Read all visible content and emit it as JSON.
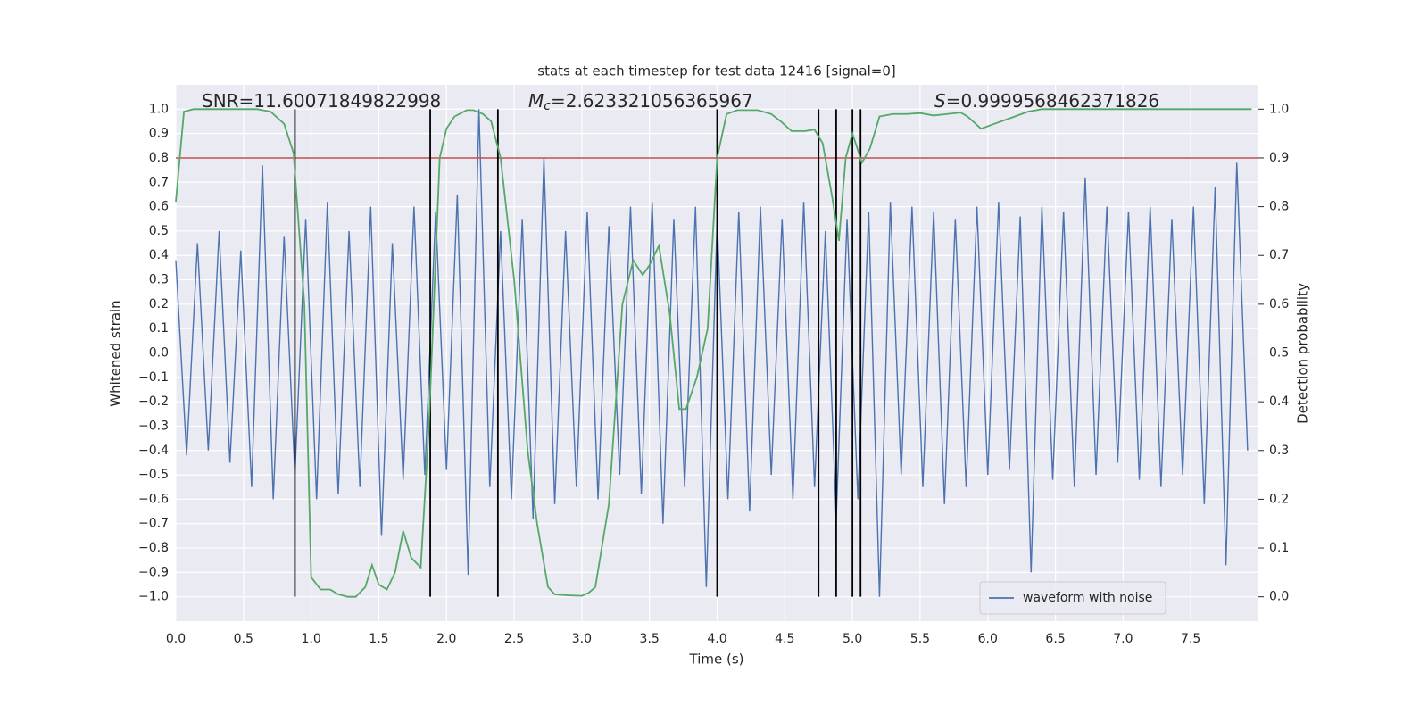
{
  "chart_data": {
    "type": "line",
    "title": "stats at each timestep for test data 12416 [signal=0]",
    "xlabel": "Time (s)",
    "ylabel": "Whitened strain",
    "y2label": "Detection probability",
    "annotations": [
      {
        "text": "SNR=11.60071849822998"
      },
      {
        "symbol": "M",
        "subscript": "c",
        "text": "=2.623321056365967"
      },
      {
        "symbol": "S",
        "text": "=0.9999568462371826"
      }
    ],
    "xlim": [
      0,
      8
    ],
    "xticks": [
      {
        "value": 0,
        "label": "0.0"
      },
      0.5,
      {
        "value": 1,
        "label": "1.0"
      },
      1.5,
      {
        "value": 2,
        "label": "2.0"
      },
      2.5,
      {
        "value": 3,
        "label": "3.0"
      },
      3.5,
      {
        "value": 4,
        "label": "4.0"
      },
      4.5,
      {
        "value": 5,
        "label": "5.0"
      },
      5.5,
      {
        "value": 6,
        "label": "6.0"
      },
      6.5,
      {
        "value": 7,
        "label": "7.0"
      },
      7.5
    ],
    "ylim": [
      -1.1,
      1.1
    ],
    "yticks": [
      {
        "value": -1,
        "label": "−1.0"
      },
      {
        "value": -0.9,
        "label": "−0.9"
      },
      {
        "value": -0.8,
        "label": "−0.8"
      },
      {
        "value": -0.7,
        "label": "−0.7"
      },
      {
        "value": -0.6,
        "label": "−0.6"
      },
      {
        "value": -0.5,
        "label": "−0.5"
      },
      {
        "value": -0.4,
        "label": "−0.4"
      },
      {
        "value": -0.3,
        "label": "−0.3"
      },
      {
        "value": -0.2,
        "label": "−0.2"
      },
      {
        "value": -0.1,
        "label": "−0.1"
      },
      {
        "value": 0,
        "label": "0.0"
      },
      0.1,
      0.2,
      0.3,
      0.4,
      0.5,
      0.6,
      0.7,
      0.8,
      0.9,
      {
        "value": 1,
        "label": "1.0"
      }
    ],
    "y2lim": [
      -0.05,
      1.05
    ],
    "y2ticks": [
      {
        "value": 0,
        "label": "0.0"
      },
      0.1,
      0.2,
      0.3,
      0.4,
      0.5,
      0.6,
      0.7,
      0.8,
      0.9,
      {
        "value": 1,
        "label": "1.0"
      }
    ],
    "grid": true,
    "legend": "lower right",
    "hline": {
      "value": 0.8,
      "color": "#c44e52"
    },
    "vlines": [
      0.88,
      1.88,
      2.38,
      4.0,
      4.75,
      4.88,
      5.0,
      5.06
    ],
    "vline_range": [
      -1,
      1
    ],
    "vline_color": "#000000",
    "series": [
      {
        "name": "waveform with noise",
        "color": "#4c72b0",
        "x": [
          0,
          0.08,
          0.16,
          0.24,
          0.32,
          0.4,
          0.48,
          0.56,
          0.64,
          0.72,
          0.8,
          0.88,
          0.96,
          1.04,
          1.12,
          1.2,
          1.28,
          1.36,
          1.44,
          1.52,
          1.6,
          1.68,
          1.76,
          1.84,
          1.92,
          2,
          2.08,
          2.16,
          2.24,
          2.32,
          2.4,
          2.48,
          2.56,
          2.64,
          2.72,
          2.8,
          2.88,
          2.96,
          3.04,
          3.12,
          3.2,
          3.28,
          3.36,
          3.44,
          3.52,
          3.6,
          3.68,
          3.76,
          3.84,
          3.92,
          4,
          4.08,
          4.16,
          4.24,
          4.32,
          4.4,
          4.48,
          4.56,
          4.64,
          4.72,
          4.8,
          4.88,
          4.96,
          5.04,
          5.12,
          5.2,
          5.28,
          5.36,
          5.44,
          5.52,
          5.6,
          5.68,
          5.76,
          5.84,
          5.92,
          6,
          6.08,
          6.16,
          6.24,
          6.32,
          6.4,
          6.48,
          6.56,
          6.64,
          6.72,
          6.8,
          6.88,
          6.96,
          7.04,
          7.12,
          7.2,
          7.28,
          7.36,
          7.44,
          7.52,
          7.6,
          7.68,
          7.76,
          7.84,
          7.92
        ],
        "values": [
          0.38,
          -0.42,
          0.45,
          -0.4,
          0.5,
          -0.45,
          0.42,
          -0.55,
          0.77,
          -0.6,
          0.48,
          -0.5,
          0.55,
          -0.6,
          0.62,
          -0.58,
          0.5,
          -0.55,
          0.6,
          -0.75,
          0.45,
          -0.52,
          0.6,
          -0.5,
          0.58,
          -0.48,
          0.65,
          -0.91,
          1.0,
          -0.55,
          0.5,
          -0.6,
          0.55,
          -0.68,
          0.8,
          -0.62,
          0.5,
          -0.55,
          0.58,
          -0.6,
          0.52,
          -0.5,
          0.6,
          -0.58,
          0.62,
          -0.7,
          0.55,
          -0.55,
          0.6,
          -0.96,
          0.55,
          -0.6,
          0.58,
          -0.65,
          0.6,
          -0.5,
          0.55,
          -0.6,
          0.62,
          -0.55,
          0.5,
          -0.68,
          0.55,
          -0.6,
          0.58,
          -1.0,
          0.62,
          -0.5,
          0.6,
          -0.55,
          0.58,
          -0.62,
          0.55,
          -0.55,
          0.6,
          -0.5,
          0.62,
          -0.48,
          0.56,
          -0.9,
          0.6,
          -0.52,
          0.58,
          -0.55,
          0.72,
          -0.5,
          0.6,
          -0.45,
          0.58,
          -0.52,
          0.6,
          -0.55,
          0.55,
          -0.5,
          0.6,
          -0.62,
          0.68,
          -0.87,
          0.78,
          -0.4
        ]
      },
      {
        "color": "#55a868",
        "axis": "y2",
        "x": [
          0,
          0.06,
          0.13,
          0.6,
          0.7,
          0.8,
          0.87,
          0.95,
          1.0,
          1.07,
          1.14,
          1.2,
          1.27,
          1.33,
          1.4,
          1.45,
          1.5,
          1.56,
          1.62,
          1.68,
          1.74,
          1.81,
          1.87,
          1.95,
          2.0,
          2.06,
          2.15,
          2.2,
          2.27,
          2.33,
          2.4,
          2.5,
          2.6,
          2.67,
          2.75,
          2.8,
          2.9,
          3.0,
          3.05,
          3.1,
          3.2,
          3.3,
          3.38,
          3.45,
          3.5,
          3.57,
          3.65,
          3.72,
          3.77,
          3.85,
          3.93,
          4.0,
          4.07,
          4.15,
          4.3,
          4.4,
          4.47,
          4.55,
          4.65,
          4.72,
          4.78,
          4.85,
          4.9,
          4.95,
          5.0,
          5.07,
          5.13,
          5.2,
          5.3,
          5.4,
          5.5,
          5.6,
          5.7,
          5.8,
          5.85,
          5.95,
          6.05,
          6.2,
          6.3,
          6.4,
          7.95
        ],
        "values": [
          0.81,
          0.995,
          1.0,
          1.0,
          0.995,
          0.97,
          0.91,
          0.6,
          0.04,
          0.015,
          0.015,
          0.005,
          0.0,
          0.0,
          0.02,
          0.065,
          0.025,
          0.015,
          0.05,
          0.135,
          0.08,
          0.06,
          0.35,
          0.9,
          0.96,
          0.985,
          0.998,
          0.998,
          0.99,
          0.975,
          0.9,
          0.65,
          0.3,
          0.15,
          0.02,
          0.005,
          0.003,
          0.002,
          0.008,
          0.02,
          0.19,
          0.6,
          0.69,
          0.66,
          0.68,
          0.72,
          0.58,
          0.385,
          0.385,
          0.45,
          0.55,
          0.9,
          0.99,
          0.998,
          0.998,
          0.99,
          0.975,
          0.955,
          0.955,
          0.958,
          0.93,
          0.82,
          0.73,
          0.9,
          0.95,
          0.89,
          0.92,
          0.985,
          0.99,
          0.99,
          0.992,
          0.987,
          0.99,
          0.993,
          0.985,
          0.96,
          0.97,
          0.985,
          0.995,
          1.0,
          1.0
        ]
      }
    ]
  }
}
